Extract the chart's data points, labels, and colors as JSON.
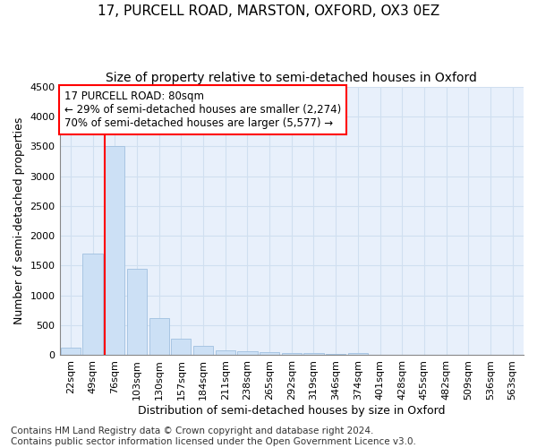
{
  "title1": "17, PURCELL ROAD, MARSTON, OXFORD, OX3 0EZ",
  "title2": "Size of property relative to semi-detached houses in Oxford",
  "xlabel": "Distribution of semi-detached houses by size in Oxford",
  "ylabel": "Number of semi-detached properties",
  "footnote": "Contains HM Land Registry data © Crown copyright and database right 2024.\nContains public sector information licensed under the Open Government Licence v3.0.",
  "categories": [
    "22sqm",
    "49sqm",
    "76sqm",
    "103sqm",
    "130sqm",
    "157sqm",
    "184sqm",
    "211sqm",
    "238sqm",
    "265sqm",
    "292sqm",
    "319sqm",
    "346sqm",
    "374sqm",
    "401sqm",
    "428sqm",
    "455sqm",
    "482sqm",
    "509sqm",
    "536sqm",
    "563sqm"
  ],
  "values": [
    120,
    1700,
    3500,
    1450,
    620,
    270,
    150,
    80,
    70,
    55,
    40,
    30,
    25,
    40,
    8,
    5,
    4,
    3,
    2,
    1,
    1
  ],
  "bar_color": "#cce0f5",
  "bar_edge_color": "#a0c0e0",
  "property_line_index": 2,
  "annotation_text": "17 PURCELL ROAD: 80sqm\n← 29% of semi-detached houses are smaller (2,274)\n70% of semi-detached houses are larger (5,577) →",
  "ylim": [
    0,
    4500
  ],
  "yticks": [
    0,
    500,
    1000,
    1500,
    2000,
    2500,
    3000,
    3500,
    4000,
    4500
  ],
  "grid_color": "#d0dff0",
  "bg_color": "#e8f0fb",
  "fig_bg_color": "#ffffff",
  "title1_fontsize": 11,
  "title2_fontsize": 10,
  "xlabel_fontsize": 9,
  "ylabel_fontsize": 9,
  "tick_fontsize": 8,
  "annotation_fontsize": 8.5,
  "footnote_fontsize": 7.5
}
